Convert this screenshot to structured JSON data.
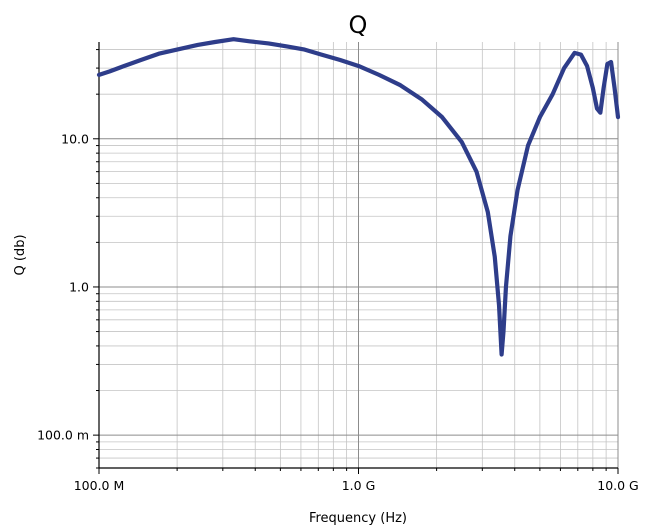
{
  "chart_data": {
    "type": "line",
    "title": "Q",
    "xlabel": "Frequency (Hz)",
    "ylabel": "Q (db)",
    "x_scale": "log",
    "y_scale": "log",
    "xlim": [
      100000000,
      10000000000
    ],
    "ylim": [
      0.06,
      45
    ],
    "grid": true,
    "line_color": "#2e3d8a",
    "x_ticks": [
      {
        "value": 100000000,
        "label": "100.0 M"
      },
      {
        "value": 1000000000,
        "label": "1.0 G"
      },
      {
        "value": 10000000000,
        "label": "10.0 G"
      }
    ],
    "y_ticks": [
      {
        "value": 0.1,
        "label": "100.0 m"
      },
      {
        "value": 1,
        "label": "1.0"
      },
      {
        "value": 10,
        "label": "10.0"
      }
    ],
    "series": [
      {
        "x": [
          100000000,
          110000000,
          125000000,
          145000000,
          170000000,
          200000000,
          240000000,
          280000000,
          330000000,
          380000000,
          450000000,
          530000000,
          620000000,
          720000000,
          850000000,
          1000000000,
          1200000000,
          1450000000,
          1750000000,
          2100000000,
          2500000000,
          2850000000,
          3150000000,
          3350000000,
          3480000000,
          3560000000,
          3620000000,
          3700000000,
          3850000000,
          4100000000,
          4500000000,
          5000000000,
          5600000000,
          6200000000,
          6800000000,
          7200000000,
          7600000000,
          8000000000,
          8300000000,
          8550000000,
          8800000000,
          9100000000,
          9400000000,
          9700000000,
          10000000000
        ],
        "y": [
          27,
          28.5,
          31,
          34,
          37.5,
          40,
          43,
          45,
          47,
          45.5,
          44,
          42,
          40,
          37,
          34,
          31,
          27,
          23,
          18.5,
          14,
          9.5,
          6,
          3.2,
          1.6,
          0.75,
          0.35,
          0.5,
          1.0,
          2.2,
          4.5,
          9,
          14,
          20,
          30,
          38,
          37,
          31,
          22,
          16,
          15,
          22,
          32,
          33,
          22,
          14
        ]
      }
    ]
  }
}
